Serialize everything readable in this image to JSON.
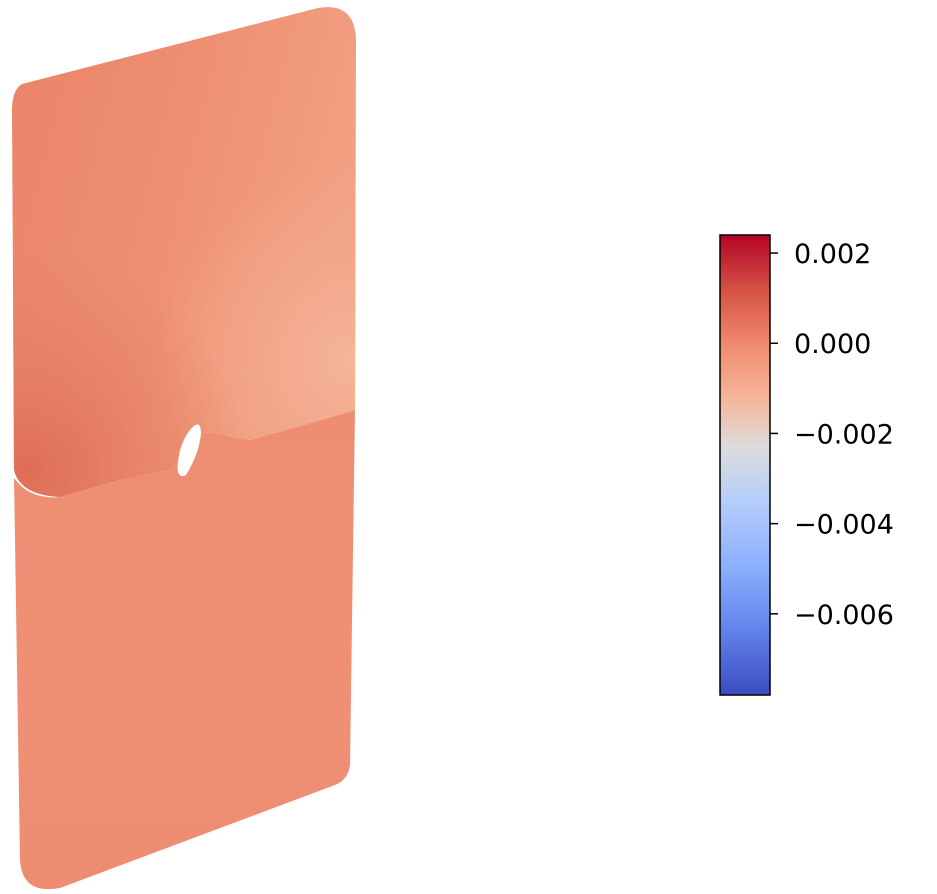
{
  "chart_data": {
    "type": "heatmap",
    "title": "",
    "description_visible": "3D-rendered plate with a crack and small hole, colored by a scalar field",
    "colormap": "coolwarm",
    "colorbar": {
      "min": -0.0078,
      "max": 0.0024,
      "ticks": [
        0.002,
        0.0,
        -0.002,
        -0.004,
        -0.006
      ],
      "tick_labels": [
        "0.002",
        "0.000",
        "−0.002",
        "−0.004",
        "−0.006"
      ],
      "placement": "right"
    },
    "field_range_on_plate": [
      -0.0002,
      0.0012
    ],
    "colors": {
      "upper_left_dark": "#e47a60",
      "upper_right_light": "#f4ae93",
      "lower_body": "#ee8d72",
      "upper_body": "#ec8b70",
      "colorbar_top": "#b40426",
      "colorbar_mid": "#dddcdc",
      "colorbar_bottom": "#3b4cc0"
    }
  }
}
